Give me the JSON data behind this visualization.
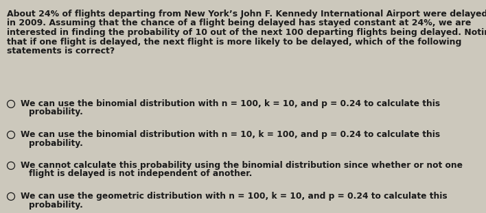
{
  "background_color": "#ccc8bc",
  "text_color": "#1a1a1a",
  "para_lines": [
    "About 24% of flights departing from New York’s John F. Kennedy International Airport were delayed",
    "in 2009. Assuming that the chance of a flight being delayed has stayed constant at 24%, we are",
    "interested in finding the probability of 10 out of the next 100 departing flights being delayed. Noting",
    "that if one flight is delayed, the next flight is more likely to be delayed, which of the following",
    "statements is correct?"
  ],
  "options": [
    [
      "We can use the binomial distribution with n = 100, k = 10, and p = 0.24 to calculate this",
      "probability."
    ],
    [
      "We can use the binomial distribution with n = 10, k = 100, and p = 0.24 to calculate this",
      "probability."
    ],
    [
      "We cannot calculate this probability using the binomial distribution since whether or not one",
      "flight is delayed is not independent of another."
    ],
    [
      "We can use the geometric distribution with n = 100, k = 10, and p = 0.24 to calculate this",
      "probability."
    ]
  ],
  "font_size_para": 9.0,
  "font_size_options": 8.8,
  "fig_width": 7.08,
  "fig_height": 3.11,
  "dpi": 100
}
